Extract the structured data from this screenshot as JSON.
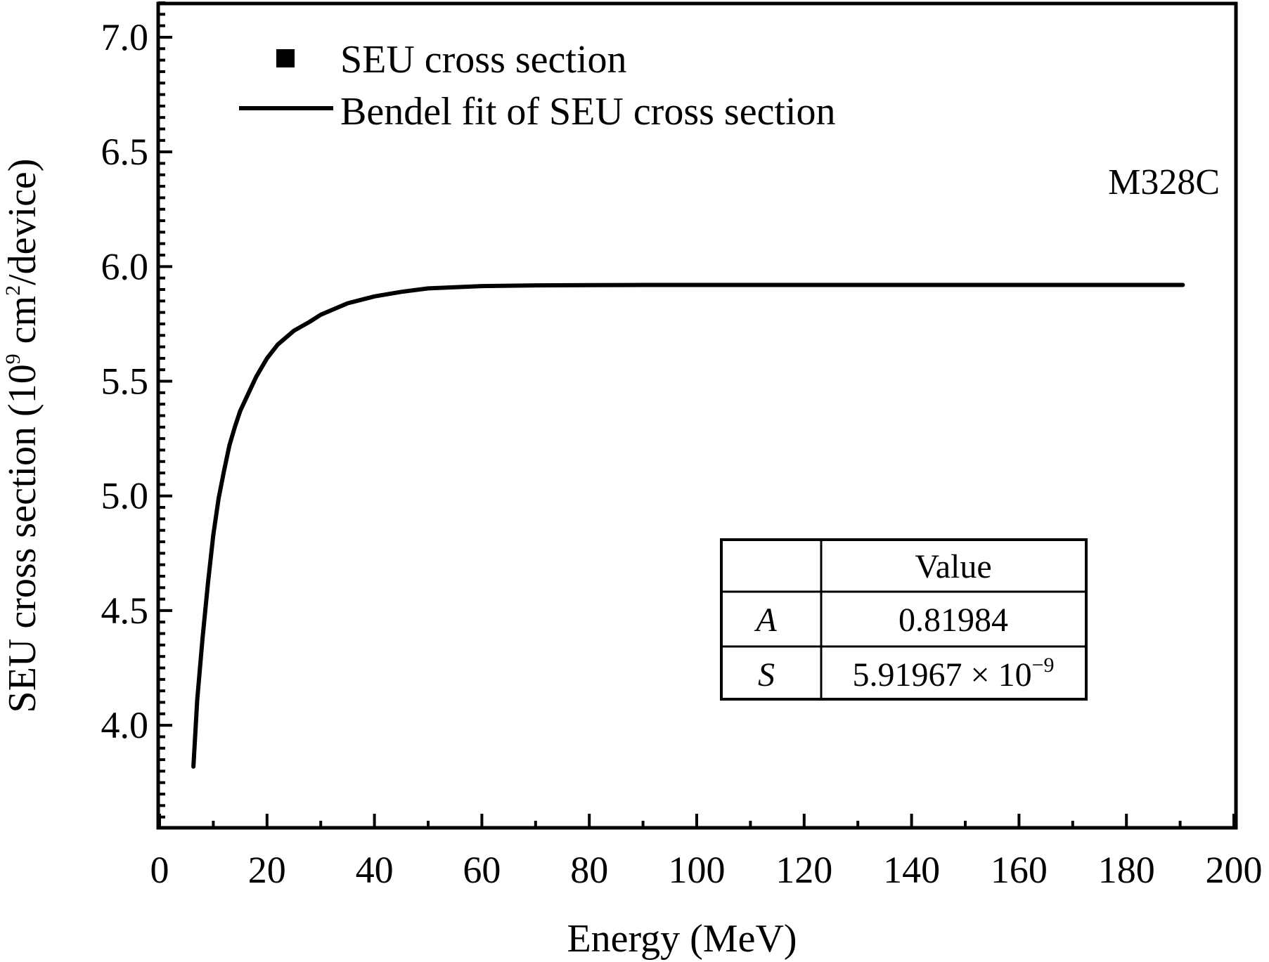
{
  "chart_data": {
    "type": "line",
    "title": "",
    "xlabel": "Energy (MeV)",
    "ylabel": {
      "pre": "SEU cross section (10",
      "sup": "9",
      "mid": " cm",
      "sup2": "2",
      "post": "/device)"
    },
    "xlim": [
      0,
      200
    ],
    "ylim": [
      3.55,
      7.15
    ],
    "x_ticks": [
      0,
      20,
      40,
      60,
      80,
      100,
      120,
      140,
      160,
      180,
      200
    ],
    "x_tick_labels": [
      "0",
      "20",
      "40",
      "60",
      "80",
      "100",
      "120",
      "140",
      "160",
      "180",
      "200"
    ],
    "y_ticks": [
      4.0,
      4.5,
      5.0,
      5.5,
      6.0,
      6.5,
      7.0
    ],
    "y_tick_labels": [
      "4.0",
      "4.5",
      "5.0",
      "5.5",
      "6.0",
      "6.5",
      "7.0"
    ],
    "grid": false,
    "legend_position": "top-left",
    "annotation": "M328C",
    "series": [
      {
        "name": "SEU cross section",
        "kind": "marker",
        "marker": "square",
        "x": [],
        "y": []
      },
      {
        "name": "Bendel fit of SEU cross section",
        "kind": "line",
        "x": [
          6.3,
          7,
          8,
          9,
          10,
          11,
          12,
          13,
          14,
          15,
          16,
          18,
          20,
          22,
          25,
          28,
          30,
          35,
          40,
          45,
          50,
          55,
          60,
          70,
          80,
          90,
          100,
          120,
          140,
          160,
          180,
          190.5
        ],
        "y": [
          3.82,
          4.11,
          4.38,
          4.62,
          4.83,
          4.99,
          5.11,
          5.22,
          5.3,
          5.37,
          5.42,
          5.52,
          5.6,
          5.66,
          5.72,
          5.76,
          5.79,
          5.84,
          5.87,
          5.89,
          5.905,
          5.91,
          5.915,
          5.918,
          5.919,
          5.92,
          5.92,
          5.92,
          5.92,
          5.92,
          5.92,
          5.92
        ]
      }
    ],
    "param_table": {
      "header": [
        "",
        "Value"
      ],
      "rows": [
        {
          "name": "A",
          "value": "0.81984"
        },
        {
          "name": "S",
          "value_base": "5.91967 × 10",
          "value_exp": "−9"
        }
      ]
    }
  }
}
